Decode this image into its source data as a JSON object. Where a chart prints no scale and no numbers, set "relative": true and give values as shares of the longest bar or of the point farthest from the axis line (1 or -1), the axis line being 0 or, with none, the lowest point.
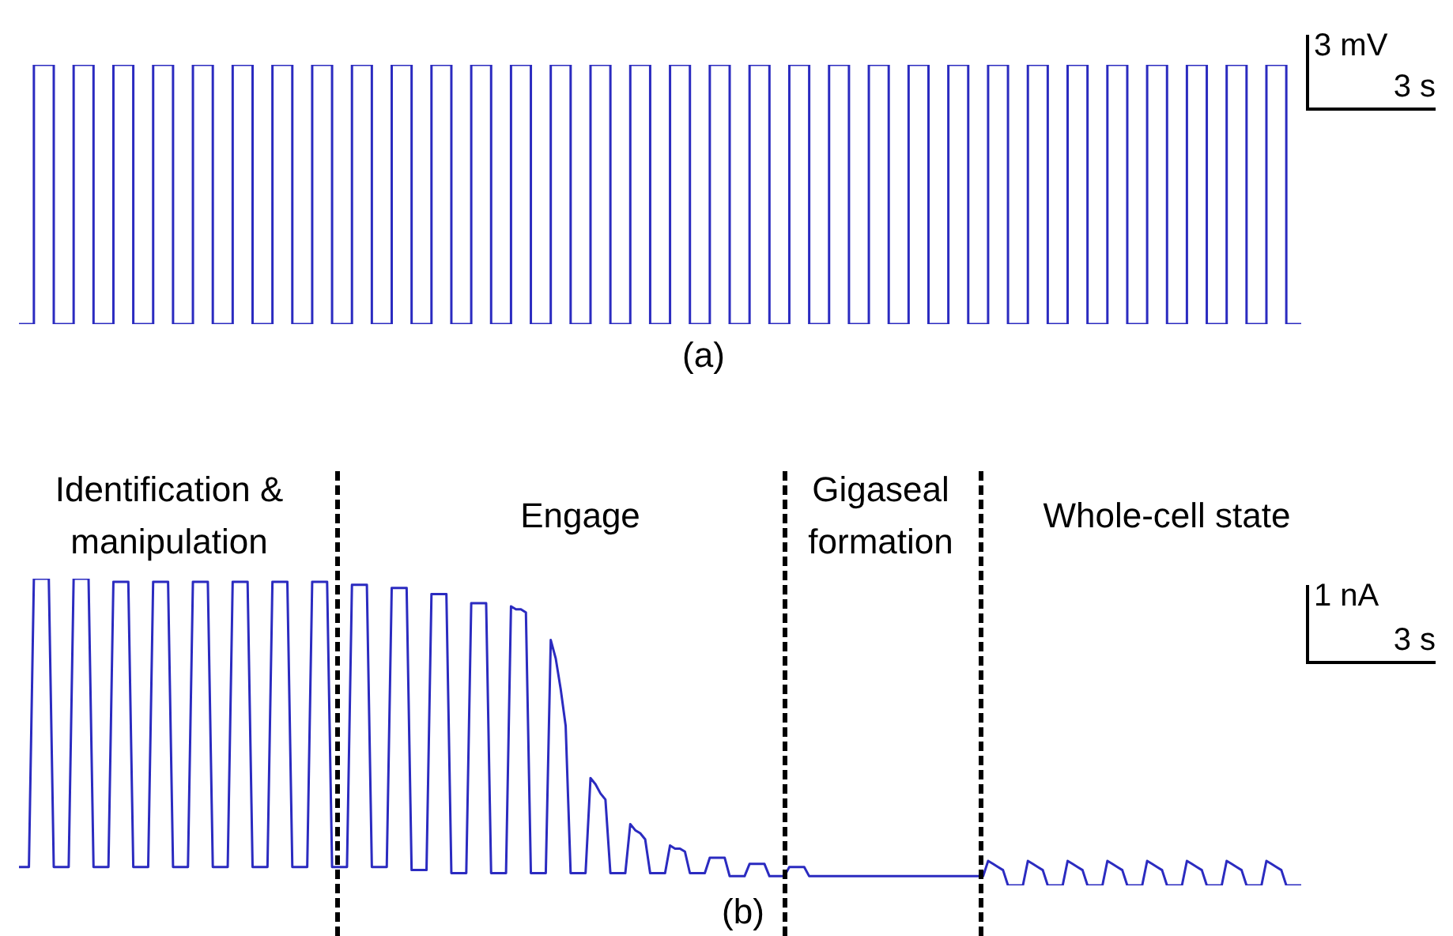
{
  "chart_data": [
    {
      "type": "step",
      "title": "(a)",
      "xlabel": "3 s",
      "ylabel": "3 mV",
      "relative": true,
      "tick_labels": false,
      "marker": "none",
      "color": "#2b2bc0",
      "categories": [
        null,
        null,
        null,
        null,
        null,
        null,
        null,
        null,
        null,
        null,
        null,
        null,
        null,
        null,
        null,
        null,
        null,
        null,
        null,
        null,
        null,
        null,
        null,
        null,
        null,
        null,
        null,
        null,
        null,
        null,
        null,
        null,
        null,
        null,
        null,
        null,
        null,
        null,
        null,
        null,
        null,
        null,
        null,
        null,
        null,
        null,
        null,
        null,
        null,
        null,
        null,
        null,
        null,
        null,
        null,
        null,
        null,
        null,
        null,
        null,
        null,
        null,
        null,
        null,
        null,
        null,
        null,
        null,
        null,
        null,
        null,
        null,
        null,
        null,
        null,
        null,
        null,
        null,
        null,
        null,
        null,
        null,
        null,
        null,
        null,
        null,
        null,
        null,
        null,
        null,
        null,
        null,
        null,
        null,
        null,
        null,
        null,
        null,
        null,
        null,
        null,
        null,
        null,
        null,
        null,
        null,
        null,
        null,
        null,
        null,
        null,
        null,
        null,
        null,
        null,
        null,
        null,
        null,
        null,
        null,
        null,
        null,
        null,
        null,
        null,
        null,
        null,
        null,
        null,
        null,
        null,
        null,
        null,
        null,
        null,
        null,
        null,
        null,
        null,
        null,
        null,
        null,
        null,
        null,
        null,
        null,
        null,
        null,
        null,
        null,
        null,
        null,
        null,
        null,
        null,
        null,
        null,
        null,
        null,
        null,
        null,
        null,
        null,
        null,
        null,
        null,
        null,
        null,
        null,
        null,
        null,
        null,
        null,
        null,
        null,
        null,
        null,
        null,
        null,
        null,
        null,
        null,
        null,
        null,
        null,
        null,
        null,
        null,
        null,
        null,
        null,
        null,
        null,
        null,
        null,
        null,
        null,
        null,
        null,
        null,
        null,
        null,
        null,
        null,
        null,
        null,
        null,
        null,
        null,
        null,
        null,
        null,
        null,
        null,
        null,
        null,
        null,
        null,
        null,
        null,
        null,
        null,
        null,
        null,
        null,
        null,
        null,
        null,
        null,
        null,
        null,
        null,
        null,
        null,
        null,
        null,
        null,
        null,
        null,
        null,
        null,
        null,
        null,
        null,
        null,
        null,
        null,
        null,
        null,
        null,
        null,
        null,
        null,
        null,
        null,
        null,
        null,
        null,
        null
      ],
      "values": [
        0,
        0,
        0,
        1,
        1,
        1,
        1,
        0,
        0,
        0,
        0,
        1,
        1,
        1,
        1,
        0,
        0,
        0,
        0,
        1,
        1,
        1,
        1,
        0,
        0,
        0,
        0,
        1,
        1,
        1,
        1,
        0,
        0,
        0,
        0,
        1,
        1,
        1,
        1,
        0,
        0,
        0,
        0,
        1,
        1,
        1,
        1,
        0,
        0,
        0,
        0,
        1,
        1,
        1,
        1,
        0,
        0,
        0,
        0,
        1,
        1,
        1,
        1,
        0,
        0,
        0,
        0,
        1,
        1,
        1,
        1,
        0,
        0,
        0,
        0,
        1,
        1,
        1,
        1,
        0,
        0,
        0,
        0,
        1,
        1,
        1,
        1,
        0,
        0,
        0,
        0,
        1,
        1,
        1,
        1,
        0,
        0,
        0,
        0,
        1,
        1,
        1,
        1,
        0,
        0,
        0,
        0,
        1,
        1,
        1,
        1,
        0,
        0,
        0,
        0,
        1,
        1,
        1,
        1,
        0,
        0,
        0,
        0,
        1,
        1,
        1,
        1,
        0,
        0,
        0,
        0,
        1,
        1,
        1,
        1,
        0,
        0,
        0,
        0,
        1,
        1,
        1,
        1,
        0,
        0,
        0,
        0,
        1,
        1,
        1,
        1,
        0,
        0,
        0,
        0,
        1,
        1,
        1,
        1,
        0,
        0,
        0,
        0,
        1,
        1,
        1,
        1,
        0,
        0,
        0,
        0,
        1,
        1,
        1,
        1,
        0,
        0,
        0,
        0,
        1,
        1,
        1,
        1,
        0,
        0,
        0,
        0,
        1,
        1,
        1,
        1,
        0,
        0,
        0,
        0,
        1,
        1,
        1,
        1,
        0,
        0,
        0,
        0,
        1,
        1,
        1,
        1,
        0,
        0,
        0,
        0,
        1,
        1,
        1,
        1,
        0,
        0,
        0,
        0,
        1,
        1,
        1,
        1,
        0,
        0,
        0,
        0,
        1,
        1,
        1,
        1,
        0,
        0,
        0,
        0,
        1,
        1,
        1,
        1,
        0,
        0,
        0,
        0,
        1,
        1,
        1,
        1,
        0,
        0,
        0,
        0,
        1,
        1,
        1,
        1,
        0,
        0,
        0,
        0
      ]
    },
    {
      "type": "line",
      "title": "(b)",
      "xlabel": "3 s",
      "ylabel": "1 nA",
      "relative": true,
      "tick_labels": false,
      "marker": "none",
      "color": "#2b2bc0",
      "annotations": [
        "Identification & manipulation",
        "Engage",
        "Gigaseal formation",
        "Whole-cell state"
      ],
      "categories": [
        null,
        null,
        null,
        null,
        null,
        null,
        null,
        null,
        null,
        null,
        null,
        null,
        null,
        null,
        null,
        null,
        null,
        null,
        null,
        null,
        null,
        null,
        null,
        null,
        null,
        null,
        null,
        null,
        null,
        null,
        null,
        null,
        null,
        null,
        null,
        null,
        null,
        null,
        null,
        null,
        null,
        null,
        null,
        null,
        null,
        null,
        null,
        null,
        null,
        null,
        null,
        null,
        null,
        null,
        null,
        null,
        null,
        null,
        null,
        null,
        null,
        null,
        null,
        null,
        null,
        null,
        null,
        null,
        null,
        null,
        null,
        null,
        null,
        null,
        null,
        null,
        null,
        null,
        null,
        null,
        null,
        null,
        null,
        null,
        null,
        null,
        null,
        null,
        null,
        null,
        null,
        null,
        null,
        null,
        null,
        null,
        null,
        null,
        null,
        null,
        null,
        null,
        null,
        null,
        null,
        null,
        null,
        null,
        null,
        null,
        null,
        null,
        null,
        null,
        null,
        null,
        null,
        null,
        null,
        null,
        null,
        null,
        null,
        null,
        null,
        null,
        null,
        null,
        null,
        null,
        null,
        null,
        null,
        null,
        null,
        null,
        null,
        null,
        null,
        null,
        null,
        null,
        null,
        null,
        null,
        null,
        null,
        null,
        null,
        null,
        null,
        null,
        null,
        null,
        null,
        null,
        null,
        null,
        null,
        null,
        null,
        null,
        null,
        null,
        null,
        null,
        null,
        null,
        null,
        null,
        null,
        null,
        null,
        null,
        null,
        null,
        null,
        null,
        null,
        null,
        null,
        null,
        null,
        null,
        null,
        null,
        null,
        null,
        null,
        null,
        null,
        null,
        null,
        null,
        null,
        null,
        null,
        null,
        null,
        null,
        null,
        null,
        null,
        null,
        null,
        null,
        null,
        null,
        null,
        null,
        null,
        null,
        null,
        null,
        null,
        null,
        null,
        null,
        null,
        null,
        null,
        null,
        null,
        null,
        null,
        null,
        null,
        null,
        null,
        null,
        null,
        null,
        null,
        null,
        null,
        null,
        null,
        null,
        null,
        null,
        null,
        null,
        null,
        null,
        null,
        null,
        null,
        null,
        null,
        null,
        null,
        null,
        null,
        null,
        null,
        null,
        null,
        null,
        null
      ],
      "values": [
        0.06,
        0.06,
        0.06,
        1.0,
        1.0,
        1.0,
        1.0,
        0.06,
        0.06,
        0.06,
        0.06,
        1.0,
        1.0,
        1.0,
        1.0,
        0.06,
        0.06,
        0.06,
        0.06,
        0.99,
        0.99,
        0.99,
        0.99,
        0.06,
        0.06,
        0.06,
        0.06,
        0.99,
        0.99,
        0.99,
        0.99,
        0.06,
        0.06,
        0.06,
        0.06,
        0.99,
        0.99,
        0.99,
        0.99,
        0.06,
        0.06,
        0.06,
        0.06,
        0.99,
        0.99,
        0.99,
        0.99,
        0.06,
        0.06,
        0.06,
        0.06,
        0.99,
        0.99,
        0.99,
        0.99,
        0.06,
        0.06,
        0.06,
        0.06,
        0.99,
        0.99,
        0.99,
        0.99,
        0.06,
        0.06,
        0.06,
        0.06,
        0.98,
        0.98,
        0.98,
        0.98,
        0.06,
        0.06,
        0.06,
        0.06,
        0.97,
        0.97,
        0.97,
        0.97,
        0.05,
        0.05,
        0.05,
        0.05,
        0.95,
        0.95,
        0.95,
        0.95,
        0.04,
        0.04,
        0.04,
        0.04,
        0.92,
        0.92,
        0.92,
        0.92,
        0.04,
        0.04,
        0.04,
        0.04,
        0.91,
        0.9,
        0.9,
        0.89,
        0.04,
        0.04,
        0.04,
        0.04,
        0.8,
        0.74,
        0.64,
        0.52,
        0.04,
        0.04,
        0.04,
        0.04,
        0.35,
        0.33,
        0.3,
        0.28,
        0.04,
        0.04,
        0.04,
        0.04,
        0.2,
        0.18,
        0.17,
        0.15,
        0.04,
        0.04,
        0.04,
        0.04,
        0.13,
        0.12,
        0.12,
        0.11,
        0.04,
        0.04,
        0.04,
        0.04,
        0.09,
        0.09,
        0.09,
        0.09,
        0.03,
        0.03,
        0.03,
        0.03,
        0.07,
        0.07,
        0.07,
        0.07,
        0.03,
        0.03,
        0.03,
        0.03,
        0.06,
        0.06,
        0.06,
        0.06,
        0.03,
        0.03,
        0.03,
        0.03,
        0.03,
        0.03,
        0.03,
        0.03,
        0.03,
        0.03,
        0.03,
        0.03,
        0.03,
        0.03,
        0.03,
        0.03,
        0.03,
        0.03,
        0.03,
        0.03,
        0.03,
        0.03,
        0.03,
        0.03,
        0.03,
        0.03,
        0.03,
        0.03,
        0.03,
        0.03,
        0.03,
        0.03,
        0.03,
        0.03,
        0.03,
        0.03,
        0.08,
        0.07,
        0.06,
        0.05,
        0.0,
        0.0,
        0.0,
        0.0,
        0.08,
        0.07,
        0.06,
        0.05,
        0.0,
        0.0,
        0.0,
        0.0,
        0.08,
        0.07,
        0.06,
        0.05,
        0.0,
        0.0,
        0.0,
        0.0,
        0.08,
        0.07,
        0.06,
        0.05,
        0.0,
        0.0,
        0.0,
        0.0,
        0.08,
        0.07,
        0.06,
        0.05,
        0.0,
        0.0,
        0.0,
        0.0,
        0.08,
        0.07,
        0.06,
        0.05,
        0.0,
        0.0,
        0.0,
        0.0,
        0.08,
        0.07,
        0.06,
        0.05,
        0.0,
        0.0,
        0.0,
        0.0,
        0.08,
        0.07,
        0.06,
        0.05,
        0.0,
        0.0,
        0.0,
        0.0
      ]
    }
  ]
}
